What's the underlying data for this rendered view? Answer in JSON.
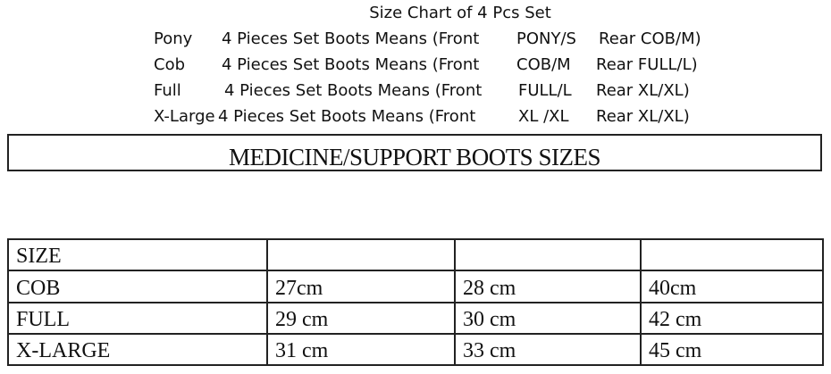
{
  "title": "Size Chart of 4 Pcs Set",
  "sets": [
    {
      "size": "Pony",
      "desc": "4 Pieces Set Boots Means (Front",
      "front": "PONY/S",
      "rear": "Rear COB/M)"
    },
    {
      "size": "Cob",
      "desc": "4 Pieces Set Boots Means (Front",
      "front": "COB/M",
      "rear": "Rear FULL/L)"
    },
    {
      "size": "Full",
      "desc": "4 Pieces Set Boots Means (Front",
      "front": "FULL/L",
      "rear": "Rear XL/XL)"
    },
    {
      "size": "X-Large",
      "desc": "4 Pieces Set Boots Means (Front",
      "front": "XL /XL",
      "rear": "Rear XL/XL)"
    }
  ],
  "banner": "MEDICINE/SUPPORT BOOTS SIZES",
  "table": {
    "rows": [
      [
        "SIZE",
        "",
        "",
        ""
      ],
      [
        "COB",
        "27cm",
        "28 cm",
        "40cm"
      ],
      [
        "FULL",
        "29 cm",
        "30 cm",
        "42 cm"
      ],
      [
        "X-LARGE",
        "31 cm",
        "33 cm",
        "45 cm"
      ]
    ]
  }
}
